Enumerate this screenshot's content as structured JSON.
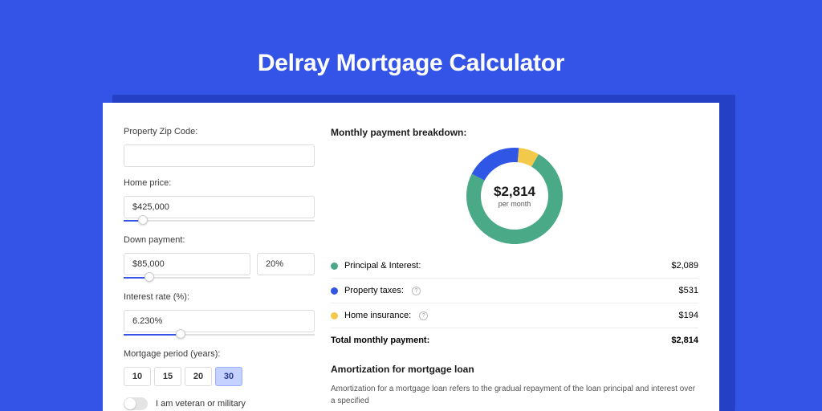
{
  "page": {
    "title": "Delray Mortgage Calculator",
    "bg_color": "#3454e8",
    "card_bg": "#ffffff",
    "shadow_color": "#2440c4"
  },
  "form": {
    "zip": {
      "label": "Property Zip Code:",
      "value": ""
    },
    "home_price": {
      "label": "Home price:",
      "value": "$425,000",
      "slider_pct": 10
    },
    "down_payment": {
      "label": "Down payment:",
      "value": "$85,000",
      "pct_value": "20%",
      "slider_pct": 20
    },
    "interest": {
      "label": "Interest rate (%):",
      "value": "6.230%",
      "slider_pct": 30
    },
    "period": {
      "label": "Mortgage period (years):",
      "options": [
        "10",
        "15",
        "20",
        "30"
      ],
      "selected": "30"
    },
    "veteran": {
      "label": "I am veteran or military",
      "on": false
    }
  },
  "breakdown": {
    "title": "Monthly payment breakdown:",
    "center_amount": "$2,814",
    "center_sub": "per month",
    "donut": {
      "type": "donut",
      "slices": [
        {
          "key": "principal",
          "value": 2089,
          "color": "#4aa987"
        },
        {
          "key": "taxes",
          "value": 531,
          "color": "#2f56e4"
        },
        {
          "key": "insurance",
          "value": 194,
          "color": "#f3c94b"
        }
      ],
      "start_angle": -60,
      "outer_r": 60,
      "inner_r": 42,
      "bg": "#ffffff"
    },
    "items": [
      {
        "name": "principal",
        "label": "Principal & Interest:",
        "amount": "$2,089",
        "color": "#4aa987",
        "info": false
      },
      {
        "name": "taxes",
        "label": "Property taxes:",
        "amount": "$531",
        "color": "#2f56e4",
        "info": true
      },
      {
        "name": "insurance",
        "label": "Home insurance:",
        "amount": "$194",
        "color": "#f3c94b",
        "info": true
      }
    ],
    "total": {
      "label": "Total monthly payment:",
      "amount": "$2,814"
    }
  },
  "amortization": {
    "title": "Amortization for mortgage loan",
    "body": "Amortization for a mortgage loan refers to the gradual repayment of the loan principal and interest over a specified"
  }
}
